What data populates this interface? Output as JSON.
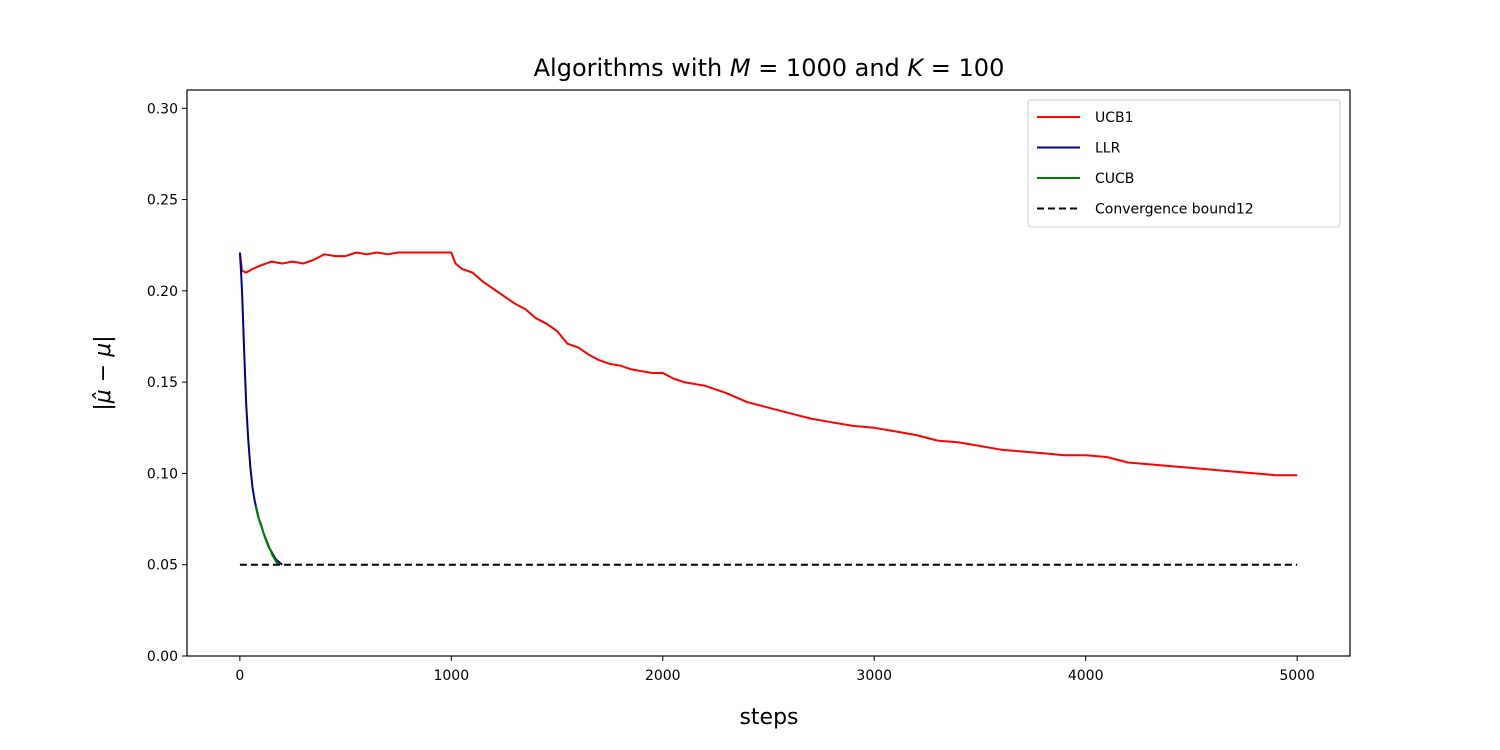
{
  "chart_data": {
    "type": "line",
    "title": "Algorithms with M = 1000 and K = 100",
    "title_parts": [
      "Algorithms with ",
      "M",
      " = 1000 and ",
      "K",
      " = 100"
    ],
    "xlabel": "steps",
    "ylabel": "|μ̂ − μ|",
    "xlim": [
      -250,
      5250
    ],
    "ylim": [
      0.0,
      0.31
    ],
    "xticks": [
      0,
      1000,
      2000,
      3000,
      4000,
      5000
    ],
    "yticks": [
      0.0,
      0.05,
      0.1,
      0.15,
      0.2,
      0.25,
      0.3
    ],
    "xtick_labels": [
      "0",
      "1000",
      "2000",
      "3000",
      "4000",
      "5000"
    ],
    "ytick_labels": [
      "0.00",
      "0.05",
      "0.10",
      "0.15",
      "0.20",
      "0.25",
      "0.30"
    ],
    "legend_position": "top-right",
    "grid": false,
    "series": [
      {
        "name": "UCB1",
        "color": "#ff0000",
        "style": "solid",
        "x": [
          0,
          10,
          30,
          60,
          100,
          150,
          200,
          250,
          300,
          350,
          400,
          450,
          500,
          550,
          600,
          650,
          700,
          750,
          800,
          850,
          900,
          950,
          1000,
          1020,
          1050,
          1100,
          1150,
          1200,
          1250,
          1300,
          1350,
          1400,
          1450,
          1500,
          1550,
          1600,
          1650,
          1700,
          1750,
          1800,
          1850,
          1900,
          1950,
          2000,
          2050,
          2100,
          2200,
          2300,
          2400,
          2500,
          2600,
          2700,
          2800,
          2900,
          3000,
          3100,
          3200,
          3300,
          3400,
          3500,
          3600,
          3700,
          3800,
          3900,
          4000,
          4100,
          4200,
          4300,
          4400,
          4500,
          4600,
          4700,
          4800,
          4900,
          5000
        ],
        "y": [
          0.221,
          0.211,
          0.21,
          0.212,
          0.214,
          0.216,
          0.215,
          0.216,
          0.215,
          0.217,
          0.22,
          0.219,
          0.219,
          0.221,
          0.22,
          0.221,
          0.22,
          0.221,
          0.221,
          0.221,
          0.221,
          0.221,
          0.221,
          0.215,
          0.212,
          0.21,
          0.205,
          0.201,
          0.197,
          0.193,
          0.19,
          0.185,
          0.182,
          0.178,
          0.171,
          0.169,
          0.165,
          0.162,
          0.16,
          0.159,
          0.157,
          0.156,
          0.155,
          0.155,
          0.152,
          0.15,
          0.148,
          0.144,
          0.139,
          0.136,
          0.133,
          0.13,
          0.128,
          0.126,
          0.125,
          0.123,
          0.121,
          0.118,
          0.117,
          0.115,
          0.113,
          0.112,
          0.111,
          0.11,
          0.11,
          0.109,
          0.106,
          0.105,
          0.104,
          0.103,
          0.102,
          0.101,
          0.1,
          0.099,
          0.099
        ]
      },
      {
        "name": "LLR",
        "color": "#00008b",
        "style": "solid",
        "x": [
          0,
          5,
          10,
          15,
          20,
          25,
          30,
          40,
          50,
          60,
          70,
          80,
          90,
          100,
          110,
          120,
          130,
          140,
          150,
          160,
          170,
          180,
          190,
          200
        ],
        "y": [
          0.221,
          0.212,
          0.2,
          0.185,
          0.168,
          0.152,
          0.138,
          0.118,
          0.103,
          0.092,
          0.085,
          0.08,
          0.075,
          0.072,
          0.068,
          0.065,
          0.062,
          0.059,
          0.057,
          0.055,
          0.053,
          0.052,
          0.051,
          0.05
        ]
      },
      {
        "name": "CUCB",
        "color": "#008000",
        "style": "solid",
        "x": [
          75,
          85,
          95,
          105,
          115,
          125,
          135,
          145,
          155,
          165,
          175,
          185
        ],
        "y": [
          0.082,
          0.077,
          0.073,
          0.07,
          0.066,
          0.063,
          0.06,
          0.058,
          0.055,
          0.053,
          0.051,
          0.05
        ]
      },
      {
        "name": "Convergence bound12",
        "color": "#000000",
        "style": "dashed",
        "x": [
          0,
          5000
        ],
        "y": [
          0.05,
          0.05
        ]
      }
    ]
  }
}
